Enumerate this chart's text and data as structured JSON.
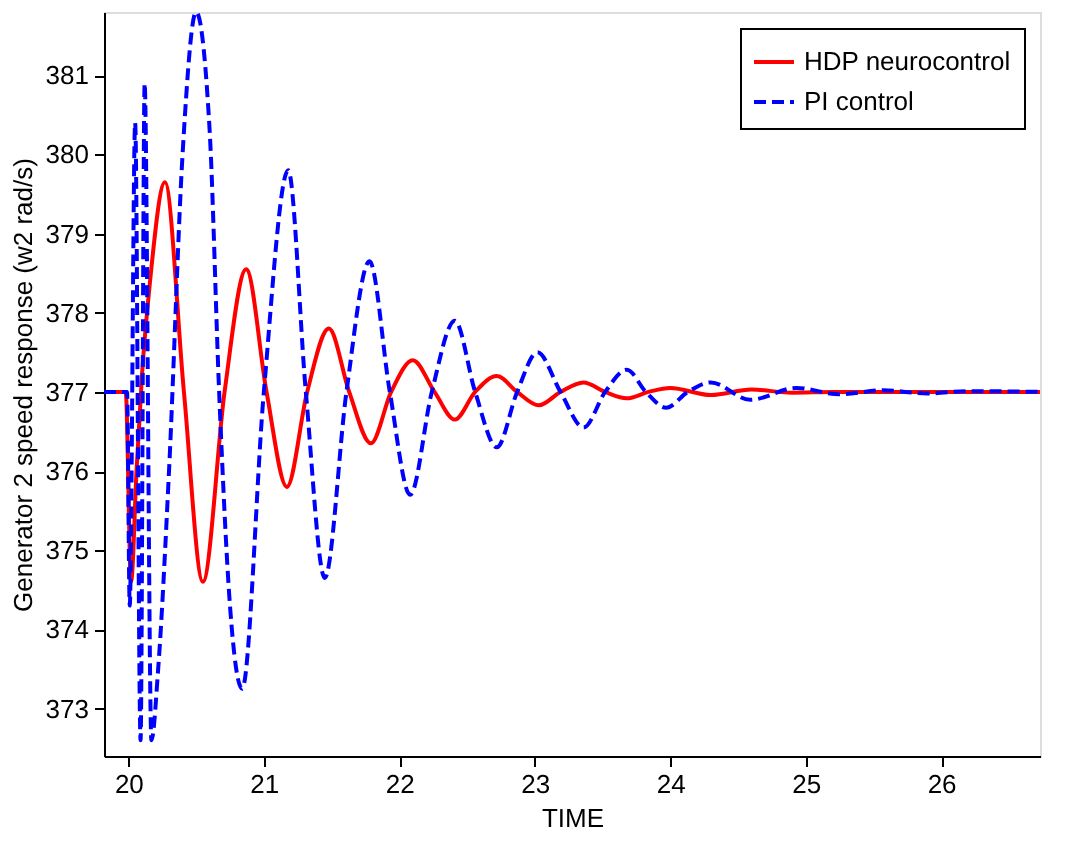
{
  "chart_data": {
    "type": "line",
    "xlabel": "TIME",
    "ylabel": "Generator 2 speed response (w2 rad/s)",
    "xlim": [
      19.82,
      26.73
    ],
    "ylim": [
      372.4,
      381.8
    ],
    "xticks": [
      20,
      21,
      22,
      23,
      24,
      25,
      26
    ],
    "yticks": [
      373,
      374,
      375,
      376,
      377,
      378,
      379,
      380,
      381
    ],
    "grid": false,
    "legend": "top right",
    "marker": "none",
    "series": [
      {
        "name": "HDP neurocontrol",
        "color": "#ff0000",
        "line_style": "solid",
        "x": [
          19.82,
          19.98,
          20.02,
          20.06,
          20.1,
          20.16,
          20.27,
          20.41,
          20.55,
          20.71,
          20.87,
          21.02,
          21.17,
          21.32,
          21.48,
          21.63,
          21.79,
          21.94,
          22.1,
          22.26,
          22.41,
          22.56,
          22.72,
          22.87,
          23.03,
          23.19,
          23.36,
          23.52,
          23.68,
          23.84,
          24.0,
          24.3,
          24.6,
          24.9,
          25.2,
          26.73
        ],
        "values": [
          377,
          377,
          374.6,
          376.0,
          377.2,
          378.4,
          379.65,
          377,
          374.6,
          377,
          378.55,
          377,
          375.8,
          377,
          377.8,
          377,
          376.35,
          377,
          377.4,
          377,
          376.65,
          377,
          377.2,
          377,
          376.83,
          377,
          377.12,
          377,
          376.92,
          377,
          377.05,
          376.96,
          377.03,
          376.99,
          377.0,
          377
        ]
      },
      {
        "name": "PI control",
        "color": "#0000ff",
        "line_style": "dashed",
        "x": [
          19.82,
          19.99,
          20.01,
          20.05,
          20.09,
          20.12,
          20.17,
          20.22,
          20.3,
          20.4,
          20.5,
          20.6,
          20.67,
          20.75,
          20.84,
          21.0,
          21.18,
          21.31,
          21.45,
          21.61,
          21.78,
          21.93,
          22.08,
          22.24,
          22.41,
          22.56,
          22.72,
          22.87,
          23.02,
          23.19,
          23.36,
          23.52,
          23.68,
          23.82,
          23.97,
          24.13,
          24.3,
          24.59,
          24.93,
          25.25,
          25.57,
          25.9,
          26.2,
          26.73
        ],
        "values": [
          377,
          377,
          374.3,
          380.4,
          372.6,
          380.9,
          372.6,
          373.5,
          376.0,
          380.0,
          381.8,
          380.3,
          377,
          374.3,
          373.25,
          377,
          379.8,
          377,
          374.65,
          377,
          378.65,
          377,
          375.7,
          377,
          377.9,
          377,
          376.3,
          377,
          377.5,
          377,
          376.55,
          377,
          377.28,
          377,
          376.8,
          377,
          377.12,
          376.9,
          377.05,
          376.97,
          377.02,
          376.98,
          377.01,
          377
        ]
      }
    ]
  }
}
